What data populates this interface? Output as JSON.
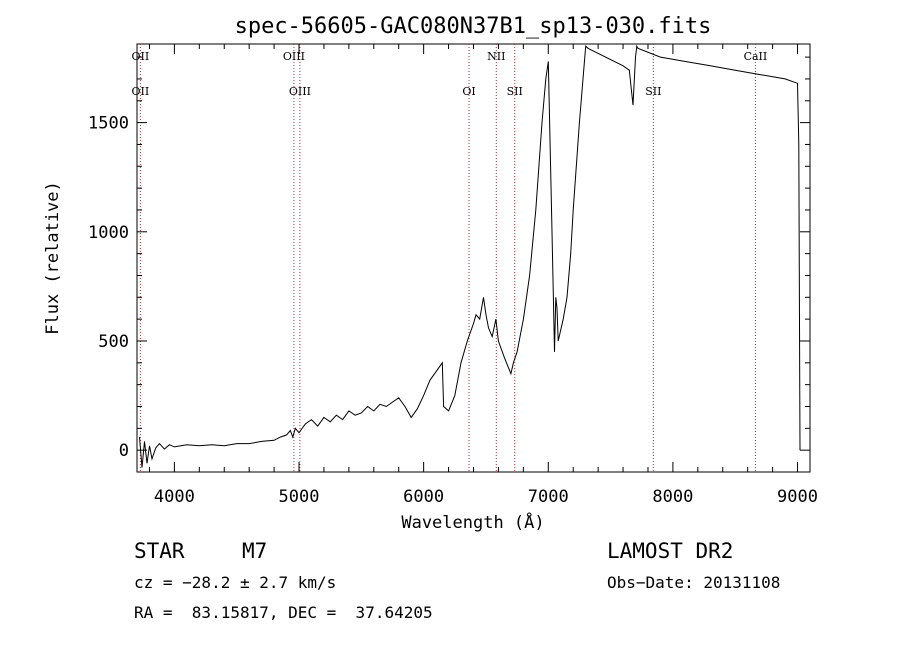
{
  "chart_data": {
    "type": "line",
    "title": "spec-56605-GAC080N37B1_sp13-030.fits",
    "xlabel": "Wavelength (Å)",
    "ylabel": "Flux (relative)",
    "xlim": [
      3700,
      9100
    ],
    "ylim": [
      -100,
      1860
    ],
    "x_ticks": [
      4000,
      5000,
      6000,
      7000,
      8000,
      9000
    ],
    "y_ticks": [
      0,
      500,
      1000,
      1500
    ],
    "grid": false,
    "series": [
      {
        "x": [
          3720,
          3740,
          3760,
          3780,
          3800,
          3820,
          3850,
          3880,
          3920,
          3960,
          4000,
          4100,
          4200,
          4300,
          4400,
          4500,
          4600,
          4700,
          4800,
          4850,
          4900,
          4930,
          4950,
          4970,
          5000,
          5050,
          5100,
          5150,
          5200,
          5250,
          5300,
          5350,
          5400,
          5450,
          5500,
          5550,
          5600,
          5650,
          5700,
          5750,
          5800,
          5850,
          5900,
          5950,
          6000,
          6050,
          6100,
          6150,
          6160,
          6200,
          6250,
          6300,
          6350,
          6400,
          6420,
          6450,
          6480,
          6500,
          6520,
          6550,
          6580,
          6600,
          6650,
          6700,
          6720,
          6750,
          6800,
          6850,
          6900,
          6950,
          6980,
          7000,
          7030,
          7050,
          7060,
          7070,
          7080,
          7100,
          7120,
          7150,
          7180,
          7200,
          7250,
          7300,
          7320,
          7600,
          7650,
          7680,
          7700,
          7710,
          7720,
          7900,
          8100,
          8300,
          8500,
          8700,
          8900,
          9000,
          9010,
          9020
        ],
        "values": [
          60,
          -80,
          40,
          -60,
          20,
          -40,
          10,
          30,
          5,
          25,
          15,
          25,
          20,
          25,
          20,
          30,
          30,
          40,
          45,
          60,
          70,
          90,
          60,
          100,
          80,
          120,
          140,
          110,
          150,
          130,
          160,
          140,
          180,
          160,
          170,
          200,
          180,
          210,
          200,
          220,
          240,
          200,
          150,
          190,
          250,
          320,
          360,
          400,
          200,
          180,
          250,
          400,
          500,
          580,
          620,
          600,
          700,
          620,
          560,
          520,
          600,
          500,
          420,
          350,
          400,
          450,
          600,
          800,
          1100,
          1500,
          1700,
          1780,
          1000,
          450,
          700,
          650,
          500,
          550,
          600,
          700,
          900,
          1100,
          1500,
          1850,
          1840,
          1760,
          1740,
          1580,
          1800,
          1850,
          1840,
          1800,
          1780,
          1760,
          1740,
          1720,
          1700,
          1680,
          1400,
          0
        ]
      }
    ],
    "lines": [
      {
        "x": 3727,
        "labels": [
          "OII",
          "OII"
        ]
      },
      {
        "x": 4959,
        "labels": [
          "OIII",
          ""
        ]
      },
      {
        "x": 5007,
        "labels": [
          "",
          "OIII"
        ]
      },
      {
        "x": 6364,
        "labels": [
          "",
          "OI"
        ]
      },
      {
        "x": 6583,
        "labels": [
          "NII",
          ""
        ]
      },
      {
        "x": 6731,
        "labels": [
          "",
          "SII"
        ]
      },
      {
        "x": 7843,
        "labels": [
          "",
          "",
          "SII"
        ]
      },
      {
        "x": 8662,
        "labels": [
          "CaII",
          ""
        ]
      }
    ]
  },
  "info": {
    "object_class": "STAR",
    "subclass": "M7",
    "survey": "LAMOST DR2",
    "cz": "cz = −28.2 ± 2.7 km/s",
    "obs_date": "Obs−Date: 20131108",
    "coords": "RA =  83.15817, DEC =  37.64205"
  }
}
